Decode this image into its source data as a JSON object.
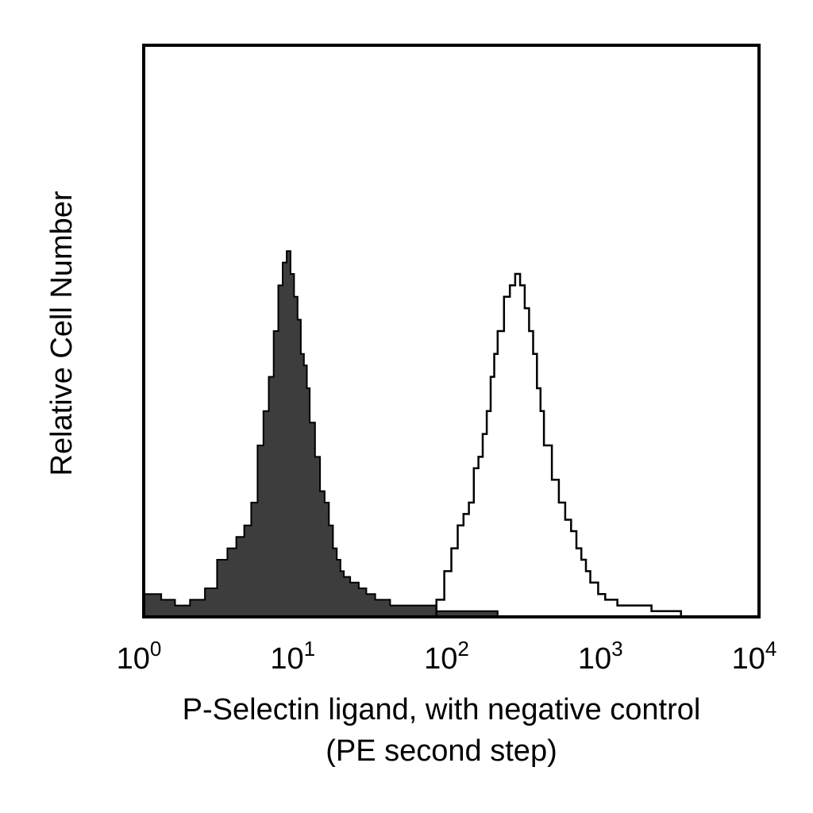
{
  "chart_data": {
    "type": "area",
    "title": "",
    "xlabel": "P-Selectin ligand, with negative control",
    "xlabel_line2": "(PE second step)",
    "ylabel": "Relative Cell Number",
    "x_scale": "log",
    "xlim": [
      1,
      10000
    ],
    "ylim": [
      0,
      100
    ],
    "grid": false,
    "legend": "none",
    "x_ticks": [
      {
        "base": "10",
        "exp": "0",
        "value": 1
      },
      {
        "base": "10",
        "exp": "1",
        "value": 10
      },
      {
        "base": "10",
        "exp": "2",
        "value": 100
      },
      {
        "base": "10",
        "exp": "3",
        "value": 1000
      },
      {
        "base": "10",
        "exp": "4",
        "value": 10000
      }
    ],
    "series": [
      {
        "style": "filled",
        "color": "#3d3d3d",
        "x": [
          1.0,
          1.3,
          1.6,
          2.0,
          2.5,
          3.0,
          3.5,
          4.0,
          4.5,
          5.0,
          5.5,
          6.0,
          6.5,
          7.0,
          7.5,
          8.0,
          8.5,
          9.0,
          9.5,
          10.0,
          10.5,
          11.0,
          11.5,
          12.0,
          13.0,
          14.0,
          15.0,
          16.0,
          17.0,
          18.0,
          19.0,
          20.0,
          22.0,
          25.0,
          28.0,
          32.0,
          36.0,
          40.0,
          50.0,
          60.0,
          70.0,
          80.0,
          90.0,
          100.0,
          110.0,
          150.0,
          200.0,
          300.0,
          400.0
        ],
        "y": [
          4,
          3,
          2,
          3,
          5,
          10,
          12,
          14,
          16,
          20,
          30,
          36,
          42,
          50,
          58,
          62,
          64,
          60,
          56,
          52,
          46,
          44,
          40,
          34,
          28,
          22,
          20,
          16,
          12,
          10,
          8,
          7,
          6,
          5,
          4,
          3,
          3,
          2,
          2,
          2,
          2,
          1,
          1,
          1,
          1,
          1,
          0,
          0,
          0
        ]
      },
      {
        "style": "outline",
        "color": "#000000",
        "x": [
          80,
          90,
          100,
          110,
          120,
          130,
          140,
          150,
          160,
          170,
          180,
          190,
          200,
          220,
          240,
          260,
          280,
          300,
          320,
          340,
          360,
          380,
          400,
          450,
          500,
          550,
          600,
          650,
          700,
          750,
          800,
          900,
          1000,
          1200,
          2000,
          2500,
          3000
        ],
        "y": [
          3,
          8,
          12,
          16,
          18,
          20,
          26,
          28,
          32,
          36,
          42,
          46,
          50,
          56,
          58,
          60,
          58,
          54,
          50,
          46,
          40,
          36,
          30,
          24,
          20,
          17,
          15,
          12,
          10,
          8,
          6,
          4,
          3,
          2,
          1,
          1,
          1
        ]
      }
    ]
  }
}
